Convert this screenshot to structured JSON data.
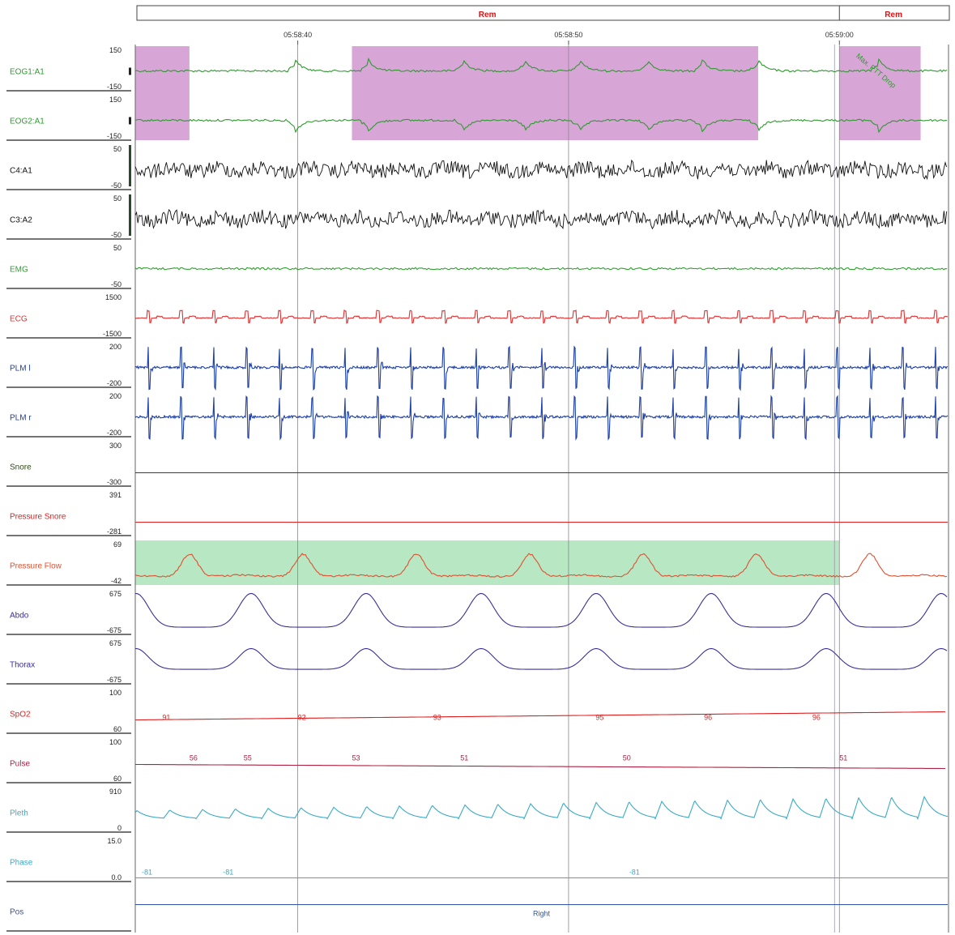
{
  "chart_data": {
    "type": "line",
    "title": "",
    "time_axis": {
      "ticks": [
        "05:58:40",
        "05:58:50",
        "05:59:00"
      ],
      "range": [
        "05:58:34",
        "05:59:04"
      ]
    },
    "stages": [
      {
        "label": "Rem",
        "from": "05:58:34",
        "to": "05:59:00"
      },
      {
        "label": "Rem",
        "from": "05:59:00",
        "to": "05:59:04"
      }
    ],
    "channels": [
      {
        "name": "EOG1:A1",
        "max": "150",
        "min": "-150",
        "color": "#2e9a2e",
        "kind": "eog",
        "dir": 1
      },
      {
        "name": "EOG2:A1",
        "max": "150",
        "min": "-150",
        "color": "#2e9a2e",
        "kind": "eog",
        "dir": -1
      },
      {
        "name": "C4:A1",
        "max": "50",
        "min": "-50",
        "color": "#111111",
        "kind": "eeg"
      },
      {
        "name": "C3:A2",
        "max": "50",
        "min": "-50",
        "color": "#111111",
        "kind": "eeg"
      },
      {
        "name": "EMG",
        "max": "50",
        "min": "-50",
        "color": "#2ea02e",
        "kind": "emg"
      },
      {
        "name": "ECG",
        "max": "1500",
        "min": "-1500",
        "color": "#e03030",
        "kind": "ecg"
      },
      {
        "name": "PLM l",
        "max": "200",
        "min": "-200",
        "color": "#1c3fa8",
        "kind": "plm"
      },
      {
        "name": "PLM r",
        "max": "200",
        "min": "-200",
        "color": "#1c3fa8",
        "kind": "plm"
      },
      {
        "name": "Snore",
        "max": "300",
        "min": "-300",
        "color": "#2b4a12",
        "kind": "flat"
      },
      {
        "name": "Pressure Snore",
        "max": "391",
        "min": "-281",
        "color": "#e02020",
        "kind": "flat"
      },
      {
        "name": "Pressure Flow",
        "max": "69",
        "min": "-42",
        "color": "#e05030",
        "kind": "flow"
      },
      {
        "name": "Abdo",
        "max": "675",
        "min": "-675",
        "color": "#3a2f9a",
        "kind": "abdo"
      },
      {
        "name": "Thorax",
        "max": "675",
        "min": "-675",
        "color": "#3a2f9a",
        "kind": "thorax"
      },
      {
        "name": "SpO2",
        "max": "100",
        "min": "60",
        "color": "#e02020",
        "kind": "spo2"
      },
      {
        "name": "Pulse",
        "max": "100",
        "min": "60",
        "color": "#b02040",
        "kind": "pulse"
      },
      {
        "name": "Pleth",
        "max": "910",
        "min": "0",
        "color": "#3aaac8",
        "kind": "pleth"
      },
      {
        "name": "Phase",
        "max": "15.0",
        "min": "0.0",
        "color": "#3aaac8",
        "kind": "phase"
      },
      {
        "name": "Pos",
        "max": "",
        "min": "",
        "color": "#3050b0",
        "kind": "pos"
      }
    ],
    "spo2_values": [
      {
        "t": "05:58:35",
        "value": "91"
      },
      {
        "t": "05:58:40",
        "value": "92"
      },
      {
        "t": "05:58:45",
        "value": "93"
      },
      {
        "t": "05:58:51",
        "value": "95"
      },
      {
        "t": "05:58:55",
        "value": "96"
      },
      {
        "t": "05:58:59",
        "value": "96"
      }
    ],
    "pulse_values": [
      {
        "t": "05:58:36",
        "value": "56"
      },
      {
        "t": "05:58:38",
        "value": "55"
      },
      {
        "t": "05:58:42",
        "value": "53"
      },
      {
        "t": "05:58:46",
        "value": "51"
      },
      {
        "t": "05:58:52",
        "value": "50"
      },
      {
        "t": "05:59:00",
        "value": "51"
      }
    ],
    "phase_values": [
      {
        "t": "05:58:34",
        "value": "-81"
      },
      {
        "t": "05:58:37",
        "value": "-81"
      },
      {
        "t": "05:58:52",
        "value": "-81"
      }
    ],
    "position_label": "Right",
    "event_annotation": "Max. PTT Drop",
    "events": [
      {
        "type": "eye-movement",
        "channels": [
          "EOG1:A1",
          "EOG2:A1"
        ],
        "from": "05:58:34",
        "to": "05:58:36"
      },
      {
        "type": "eye-movement",
        "channels": [
          "EOG1:A1",
          "EOG2:A1"
        ],
        "from": "05:58:42",
        "to": "05:58:57"
      },
      {
        "type": "eye-movement",
        "channels": [
          "EOG1:A1",
          "EOG2:A1"
        ],
        "from": "05:59:00",
        "to": "05:59:03"
      },
      {
        "type": "flow-event",
        "channels": [
          "Pressure Flow"
        ],
        "from": "05:58:34",
        "to": "05:59:00"
      }
    ],
    "colors": {
      "stage": "#e01010",
      "eye_event": "#d7a6d7",
      "flow_event": "#b7e7c3",
      "grid": "#888888"
    }
  }
}
